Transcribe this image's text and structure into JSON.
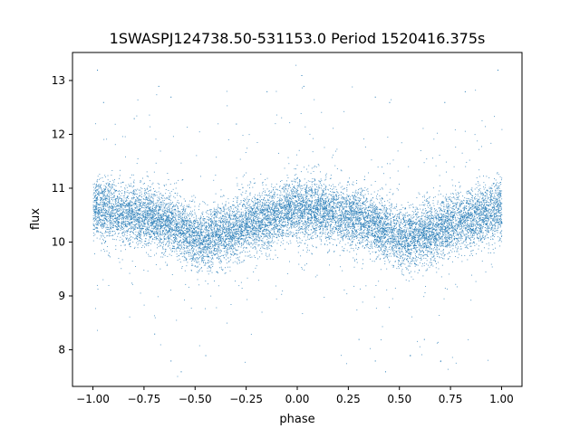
{
  "chart_data": {
    "type": "scatter",
    "title": "1SWASPJ124738.50-531153.0 Period 1520416.375s",
    "xlabel": "phase",
    "ylabel": "flux",
    "xlim": [
      -1.1,
      1.1
    ],
    "ylim": [
      7.32,
      13.52
    ],
    "xticks": [
      -1.0,
      -0.75,
      -0.5,
      -0.25,
      0.0,
      0.25,
      0.5,
      0.75,
      1.0
    ],
    "xtick_labels": [
      "−1.00",
      "−0.75",
      "−0.50",
      "−0.25",
      "0.00",
      "0.25",
      "0.50",
      "0.75",
      "1.00"
    ],
    "yticks": [
      8,
      9,
      10,
      11,
      12,
      13
    ],
    "ytick_labels": [
      "8",
      "9",
      "10",
      "11",
      "12",
      "13"
    ],
    "grid": false,
    "legend": "none",
    "point_color": "#1f77b4",
    "light_curve_profile": {
      "phase": [
        -1.0,
        -0.9,
        -0.8,
        -0.7,
        -0.6,
        -0.5,
        -0.45,
        -0.4,
        -0.3,
        -0.2,
        -0.1,
        0.0,
        0.1,
        0.2,
        0.3,
        0.4,
        0.5,
        0.55,
        0.6,
        0.7,
        0.8,
        0.9,
        1.0
      ],
      "median_flux": [
        10.65,
        10.6,
        10.5,
        10.45,
        10.3,
        10.1,
        10.05,
        10.15,
        10.25,
        10.4,
        10.5,
        10.65,
        10.6,
        10.5,
        10.45,
        10.3,
        10.1,
        10.05,
        10.15,
        10.25,
        10.4,
        10.5,
        10.65
      ],
      "scatter_half_width": 0.45
    },
    "outlier_points": [
      {
        "x": -0.98,
        "y": 13.2
      },
      {
        "x": -0.95,
        "y": 12.6
      },
      {
        "x": -0.68,
        "y": 12.9
      },
      {
        "x": -0.62,
        "y": 12.7
      },
      {
        "x": -0.62,
        "y": 7.8
      },
      {
        "x": -0.57,
        "y": 7.6
      },
      {
        "x": -0.45,
        "y": 7.9
      },
      {
        "x": -0.15,
        "y": 12.8
      },
      {
        "x": 0.02,
        "y": 13.1
      },
      {
        "x": 0.03,
        "y": 12.9
      },
      {
        "x": 0.38,
        "y": 12.7
      },
      {
        "x": 0.38,
        "y": 7.8
      },
      {
        "x": 0.43,
        "y": 7.6
      },
      {
        "x": 0.55,
        "y": 7.9
      },
      {
        "x": 0.72,
        "y": 12.6
      },
      {
        "x": 0.82,
        "y": 12.8
      },
      {
        "x": 0.98,
        "y": 13.2
      },
      {
        "x": 0.45,
        "y": 12.6
      },
      {
        "x": -0.3,
        "y": 12.2
      },
      {
        "x": 0.62,
        "y": 8.2
      },
      {
        "x": -0.7,
        "y": 8.3
      },
      {
        "x": 0.3,
        "y": 8.2
      },
      {
        "x": 0.7,
        "y": 7.8
      },
      {
        "x": -0.8,
        "y": 12.3
      }
    ],
    "background_point_count": 14000
  }
}
